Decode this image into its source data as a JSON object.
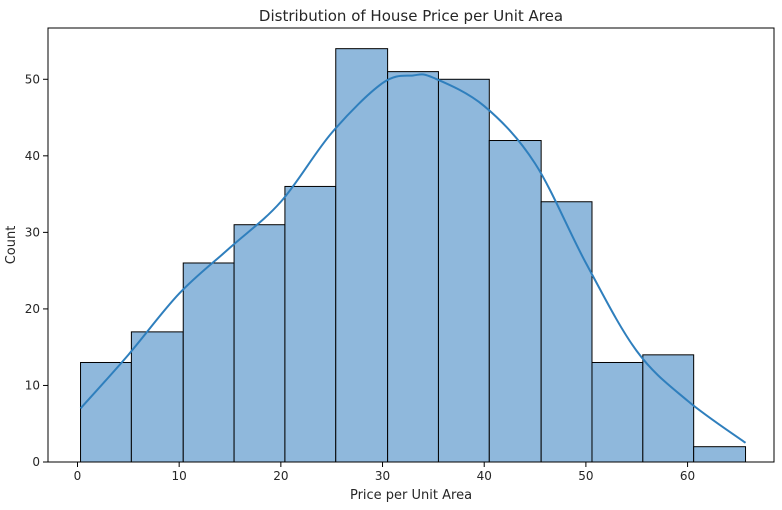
{
  "chart_data": {
    "type": "bar",
    "title": "Distribution of House Price per Unit Area",
    "xlabel": "Price per Unit Area",
    "ylabel": "Count",
    "xlim": [
      -2.9,
      68.5
    ],
    "ylim": [
      0,
      56.7
    ],
    "x_ticks": [
      0,
      10,
      20,
      30,
      40,
      50,
      60
    ],
    "y_ticks": [
      0,
      10,
      20,
      30,
      40,
      50
    ],
    "x_tick_labels": [
      "0",
      "10",
      "20",
      "30",
      "40",
      "50",
      "60"
    ],
    "y_tick_labels": [
      "0",
      "10",
      "20",
      "30",
      "40",
      "50"
    ],
    "grid": false,
    "bins": [
      {
        "x0": 0.3,
        "x1": 5.3,
        "count": 13
      },
      {
        "x0": 5.3,
        "x1": 10.4,
        "count": 17
      },
      {
        "x0": 10.4,
        "x1": 15.4,
        "count": 26
      },
      {
        "x0": 15.4,
        "x1": 20.4,
        "count": 31
      },
      {
        "x0": 20.4,
        "x1": 25.4,
        "count": 36
      },
      {
        "x0": 25.4,
        "x1": 30.5,
        "count": 54
      },
      {
        "x0": 30.5,
        "x1": 35.5,
        "count": 51
      },
      {
        "x0": 35.5,
        "x1": 40.5,
        "count": 50
      },
      {
        "x0": 40.5,
        "x1": 45.6,
        "count": 42
      },
      {
        "x0": 45.6,
        "x1": 50.6,
        "count": 34
      },
      {
        "x0": 50.6,
        "x1": 55.6,
        "count": 13
      },
      {
        "x0": 55.6,
        "x1": 60.6,
        "count": 14
      },
      {
        "x0": 60.6,
        "x1": 65.7,
        "count": 2
      }
    ],
    "kde": {
      "x": [
        0.3,
        5,
        10,
        15,
        20,
        25,
        30,
        33,
        35,
        40,
        45,
        50,
        55,
        60,
        65.7
      ],
      "y": [
        7,
        14,
        22,
        28,
        34,
        43,
        49.5,
        50.5,
        50.2,
        46.5,
        39,
        26,
        14.5,
        8,
        2.5
      ]
    },
    "colors": {
      "bar_fill": "#8fb8dc",
      "bar_edge": "#000000",
      "kde_line": "#2f7fbd",
      "axis": "#000000"
    }
  }
}
